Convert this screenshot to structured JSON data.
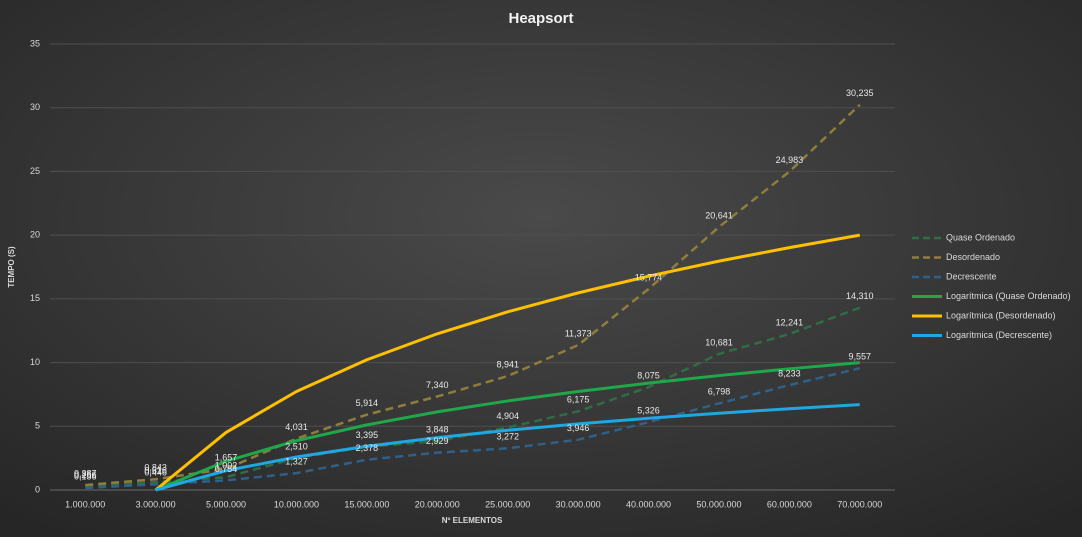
{
  "chart_data": {
    "type": "line",
    "title": "Heapsort",
    "x_label": "Nº ELEMENTOS",
    "y_label": "TEMPO (S)",
    "categories": [
      "1.000.000",
      "3.000.000",
      "5.000.000",
      "10.000.000",
      "15.000.000",
      "20.000.000",
      "25.000.000",
      "30.000.000",
      "40.000.000",
      "50.000.000",
      "60.000.000",
      "70.000.000"
    ],
    "ylim": [
      0,
      35
    ],
    "yticks": [
      0,
      5,
      10,
      15,
      20,
      25,
      30,
      35
    ],
    "grid": true,
    "legend": "right",
    "series": [
      {
        "name": "Quase Ordenado",
        "color": "#2f6e45",
        "style": "dashed",
        "values": [
          0.256,
          0.616,
          1.002,
          2.51,
          3.395,
          3.848,
          4.904,
          6.175,
          8.075,
          10.681,
          12.241,
          14.31
        ],
        "value_labels": [
          "0,256",
          "0,616",
          "1,002",
          "2,510",
          "3,395",
          "3,848",
          "4,904",
          "6,175",
          "8,075",
          "10,681",
          "12,241",
          "14,310"
        ]
      },
      {
        "name": "Desordenado",
        "color": "#8f7d3c",
        "style": "dashed",
        "values": [
          0.387,
          0.843,
          1.657,
          4.031,
          5.914,
          7.34,
          8.941,
          11.373,
          15.774,
          20.641,
          24.983,
          30.235
        ],
        "value_labels": [
          "0,387",
          "0,843",
          "1,657",
          "4,031",
          "5,914",
          "7,340",
          "8,941",
          "11,373",
          "15,774",
          "20,641",
          "24,983",
          "30,235"
        ]
      },
      {
        "name": "Decrescente",
        "color": "#2e6089",
        "style": "dashed",
        "values": [
          0.156,
          0.446,
          0.754,
          1.327,
          2.378,
          2.929,
          3.272,
          3.946,
          5.326,
          6.798,
          8.233,
          9.557
        ],
        "value_labels": [
          "0,156",
          "0,446",
          "0,754",
          "1,327",
          "2,378",
          "2,929",
          "3,272",
          "3,946",
          "5,326",
          "6,798",
          "8,233",
          "9,557"
        ]
      },
      {
        "name": "Logarítmica (Quase Ordenado)",
        "color": "#1fa84a",
        "style": "solid",
        "values": [
          null,
          0,
          2.26,
          3.87,
          5.11,
          6.13,
          6.99,
          7.73,
          8.39,
          8.98,
          9.51,
          10.0
        ]
      },
      {
        "name": "Logarítmica (Desordenado)",
        "color": "#ffc000",
        "style": "solid",
        "values": [
          null,
          0,
          4.52,
          7.73,
          10.22,
          12.26,
          13.98,
          15.47,
          16.78,
          17.96,
          19.02,
          20.0
        ]
      },
      {
        "name": "Logarítmica (Decrescente)",
        "color": "#1ea7e1",
        "style": "solid",
        "values": [
          null,
          0,
          1.52,
          2.59,
          3.43,
          4.11,
          4.69,
          5.19,
          5.63,
          6.02,
          6.38,
          6.7
        ]
      }
    ]
  }
}
